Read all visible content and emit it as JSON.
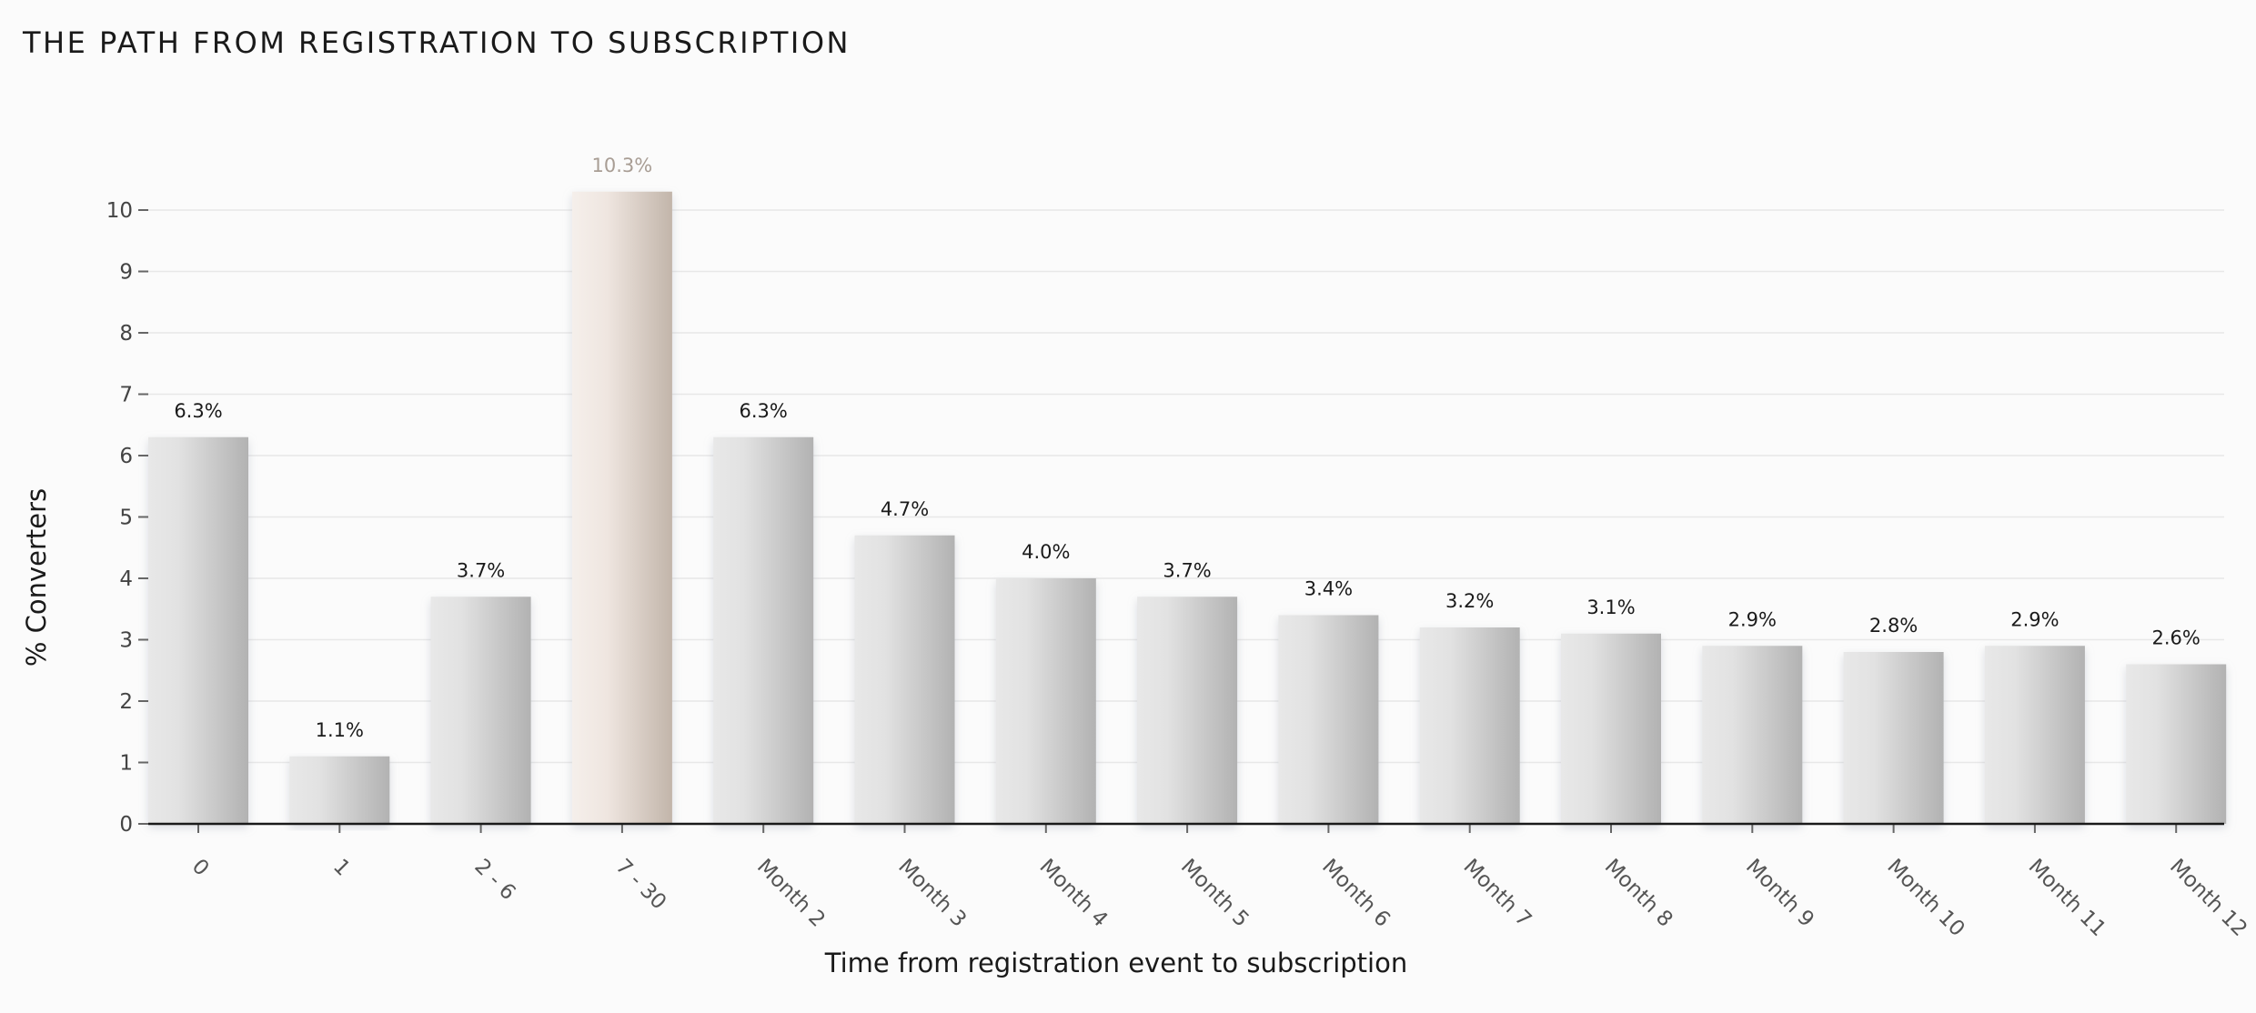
{
  "title": "THE PATH FROM REGISTRATION TO SUBSCRIPTION",
  "chart_data": {
    "type": "bar",
    "title": "THE PATH FROM REGISTRATION TO SUBSCRIPTION",
    "xlabel": "Time from registration event to subscription",
    "ylabel": "% Converters",
    "ylim": [
      0,
      10.6
    ],
    "yticks": [
      0,
      1,
      2,
      3,
      4,
      5,
      6,
      7,
      8,
      9,
      10
    ],
    "grid": true,
    "categories": [
      "0",
      "1",
      "2 - 6",
      "7 - 30",
      "Month 2",
      "Month 3",
      "Month 4",
      "Month 5",
      "Month 6",
      "Month 7",
      "Month 8",
      "Month 9",
      "Month 10",
      "Month 11",
      "Month 12"
    ],
    "values": [
      6.3,
      1.1,
      3.7,
      10.3,
      6.3,
      4.7,
      4.0,
      3.7,
      3.4,
      3.2,
      3.1,
      2.9,
      2.8,
      2.9,
      2.6
    ],
    "value_labels": [
      "6.3%",
      "1.1%",
      "3.7%",
      "10.3%",
      "6.3%",
      "4.7%",
      "4.0%",
      "3.7%",
      "3.4%",
      "3.2%",
      "3.1%",
      "2.9%",
      "2.8%",
      "2.9%",
      "2.6%"
    ],
    "highlight_index": 3,
    "colors": {
      "bar_light": "#e6e6e6",
      "bar_dark": "#b4b4b4",
      "highlight_light": "#f3ece8",
      "highlight_dark": "#c4b8ae",
      "highlight_label": "#a89d94",
      "grid": "#e8e8e8",
      "axis": "#1a1a1a"
    }
  }
}
